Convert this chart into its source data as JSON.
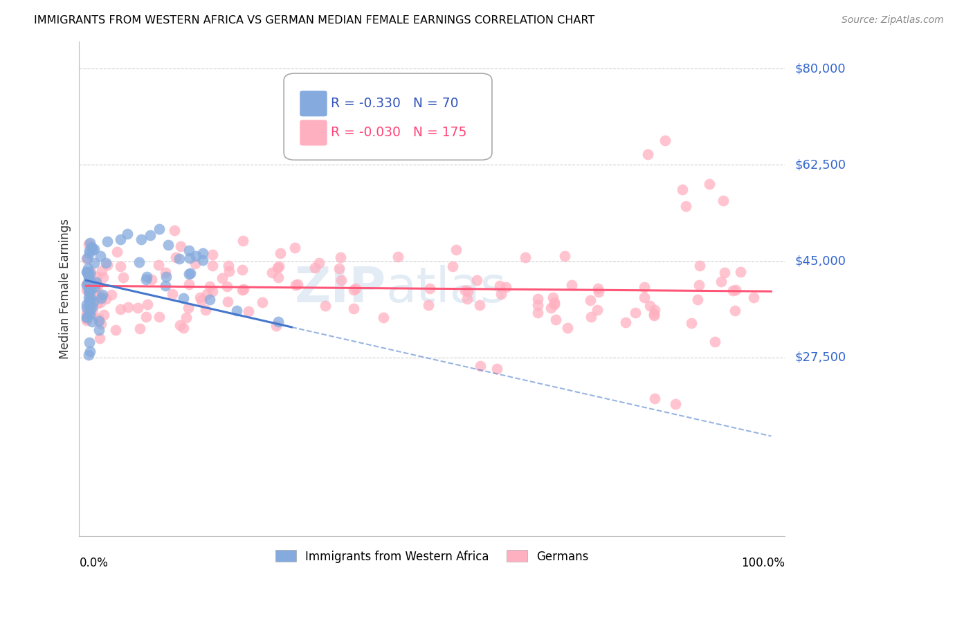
{
  "title": "IMMIGRANTS FROM WESTERN AFRICA VS GERMAN MEDIAN FEMALE EARNINGS CORRELATION CHART",
  "source": "Source: ZipAtlas.com",
  "ylabel": "Median Female Earnings",
  "ymin": -5000,
  "ymax": 85000,
  "xmin": -0.01,
  "xmax": 1.02,
  "blue_R": "-0.330",
  "blue_N": "70",
  "pink_R": "-0.030",
  "pink_N": "175",
  "blue_color": "#85AADD",
  "pink_color": "#FFB0C0",
  "blue_line_color": "#4477CC",
  "pink_line_color": "#FF5577",
  "legend_label_blue": "Immigrants from Western Africa",
  "legend_label_pink": "Germans",
  "watermark_ZIP": "ZIP",
  "watermark_atlas": "atlas",
  "ytick_vals": [
    27500,
    45000,
    62500,
    80000
  ],
  "ytick_labels": [
    "$27,500",
    "$45,000",
    "$62,500",
    "$80,000"
  ]
}
